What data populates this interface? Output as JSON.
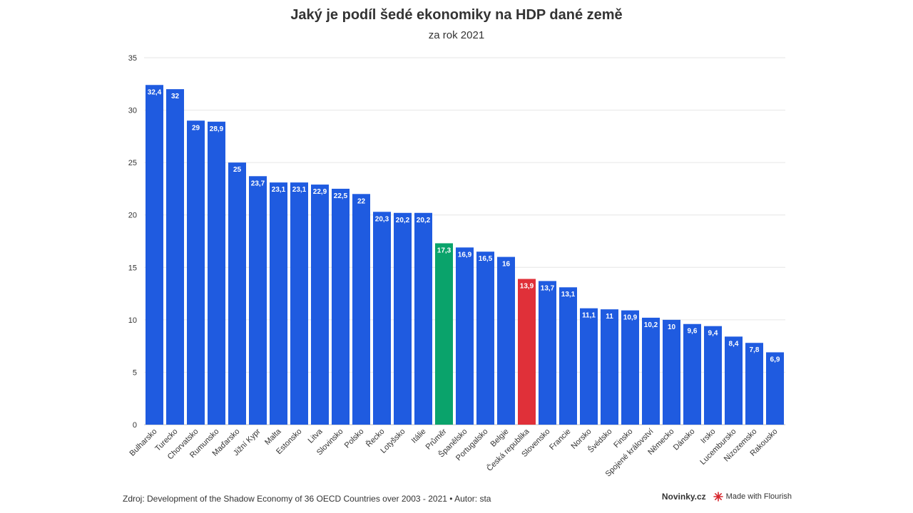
{
  "header": {
    "title": "Jaký je podíl šedé ekonomiky na HDP dané země",
    "subtitle": "za rok 2021"
  },
  "footer": {
    "source": "Zdroj: Development of the Shadow Economy of 36 OECD Countries over 2003 - 2021 • Autor: sta",
    "brand": "Novinky.cz",
    "made_with": "Made with Flourish"
  },
  "colors": {
    "default": "#1f5be0",
    "average": "#0aa36b",
    "highlight": "#e03039"
  },
  "chart_data": {
    "type": "bar",
    "title": "Jaký je podíl šedé ekonomiky na HDP dané země",
    "subtitle": "za rok 2021",
    "xlabel": "",
    "ylabel": "",
    "ylim": [
      0,
      35
    ],
    "yticks": [
      0,
      5,
      10,
      15,
      20,
      25,
      30,
      35
    ],
    "grid": true,
    "categories": [
      "Bulharsko",
      "Turecko",
      "Chorvatsko",
      "Rumunsko",
      "Maďarsko",
      "Jižní Kypr",
      "Malta",
      "Estonsko",
      "Litva",
      "Slovinsko",
      "Polsko",
      "Řecko",
      "Lotyšsko",
      "Itálie",
      "Průměr",
      "Španělsko",
      "Portugalsko",
      "Belgie",
      "Česká republika",
      "Slovensko",
      "Francie",
      "Norsko",
      "Švédsko",
      "Finsko",
      "Spojené království",
      "Německo",
      "Dánsko",
      "Irsko",
      "Lucembursko",
      "Nizozemsko",
      "Rakousko"
    ],
    "values": [
      32.4,
      32,
      29,
      28.9,
      25,
      23.7,
      23.1,
      23.1,
      22.9,
      22.5,
      22,
      20.3,
      20.2,
      20.2,
      17.3,
      16.9,
      16.5,
      16,
      13.9,
      13.7,
      13.1,
      11.1,
      11,
      10.9,
      10.2,
      10,
      9.6,
      9.4,
      8.4,
      7.8,
      6.9
    ],
    "labels": [
      "32,4",
      "32",
      "29",
      "28,9",
      "25",
      "23,7",
      "23,1",
      "23,1",
      "22,9",
      "22,5",
      "22",
      "20,3",
      "20,2",
      "20,2",
      "17,3",
      "16,9",
      "16,5",
      "16",
      "13,9",
      "13,7",
      "13,1",
      "11,1",
      "11",
      "10,9",
      "10,2",
      "10",
      "9,6",
      "9,4",
      "8,4",
      "7,8",
      "6,9"
    ],
    "highlight": {
      "Průměr": "average",
      "Česká republika": "highlight"
    }
  }
}
